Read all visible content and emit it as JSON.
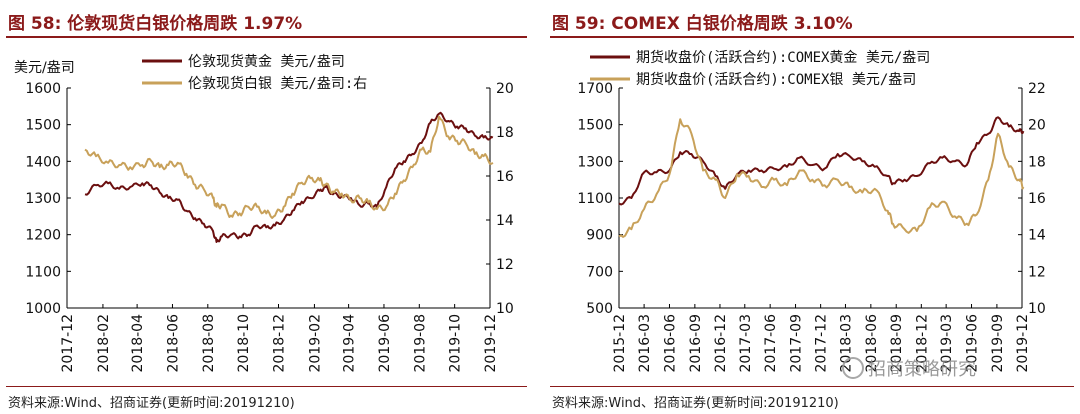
{
  "left": {
    "title": "图 58:  伦敦现货白银价格周跌 1.97%",
    "source": "资料来源:Wind、招商证券(更新时间:20191210)"
  },
  "right": {
    "title": "图 59:  COMEX 白银价格周跌 3.10%",
    "source": "资料来源:Wind、招商证券(更新时间:20191210)"
  },
  "watermark": "招商策略研究",
  "colors": {
    "accent": "#8b1a1a",
    "gold_series": "#6b0f0f",
    "silver_series": "#c8a15a"
  },
  "chart_data": [
    {
      "type": "line",
      "ylabel_left": "美元/盎司",
      "x_ticks": [
        "2017-12",
        "2018-02",
        "2018-04",
        "2018-06",
        "2018-08",
        "2018-10",
        "2018-12",
        "2019-02",
        "2019-04",
        "2019-06",
        "2019-08",
        "2019-10",
        "2019-12"
      ],
      "y_left": {
        "ticks": [
          1000,
          1100,
          1200,
          1300,
          1400,
          1500,
          1600
        ],
        "range": [
          1000,
          1600
        ]
      },
      "y_right": {
        "ticks": [
          10,
          12,
          14,
          16,
          18,
          20
        ],
        "range": [
          10,
          20
        ]
      },
      "series": [
        {
          "name": "伦敦现货黄金 美元/盎司",
          "axis": "left",
          "color": "#6b0f0f",
          "x": [
            "2018-01-01",
            "2018-01-20",
            "2018-02-10",
            "2018-03-01",
            "2018-03-20",
            "2018-04-10",
            "2018-04-25",
            "2018-05-10",
            "2018-05-25",
            "2018-06-10",
            "2018-06-25",
            "2018-07-10",
            "2018-07-25",
            "2018-08-10",
            "2018-08-16",
            "2018-08-25",
            "2018-09-10",
            "2018-09-25",
            "2018-10-10",
            "2018-10-25",
            "2018-11-10",
            "2018-11-25",
            "2018-12-10",
            "2018-12-25",
            "2019-01-10",
            "2019-01-25",
            "2019-02-10",
            "2019-02-20",
            "2019-03-05",
            "2019-03-20",
            "2019-04-05",
            "2019-04-20",
            "2019-05-05",
            "2019-05-20",
            "2019-06-05",
            "2019-06-20",
            "2019-07-05",
            "2019-07-20",
            "2019-08-05",
            "2019-08-20",
            "2019-09-04",
            "2019-09-20",
            "2019-10-05",
            "2019-10-20",
            "2019-11-05",
            "2019-11-20",
            "2019-12-06"
          ],
          "values": [
            1310,
            1335,
            1340,
            1325,
            1330,
            1340,
            1335,
            1315,
            1300,
            1295,
            1265,
            1245,
            1230,
            1210,
            1180,
            1195,
            1200,
            1195,
            1200,
            1225,
            1220,
            1225,
            1240,
            1265,
            1290,
            1300,
            1320,
            1330,
            1310,
            1305,
            1300,
            1280,
            1285,
            1275,
            1330,
            1380,
            1400,
            1420,
            1450,
            1505,
            1530,
            1510,
            1495,
            1490,
            1470,
            1465,
            1465
          ]
        },
        {
          "name": "伦敦现货白银 美元/盎司:右",
          "axis": "right",
          "color": "#c8a15a",
          "x": [
            "2018-01-01",
            "2018-01-20",
            "2018-02-10",
            "2018-03-01",
            "2018-03-20",
            "2018-04-10",
            "2018-04-25",
            "2018-05-10",
            "2018-05-25",
            "2018-06-10",
            "2018-06-25",
            "2018-07-10",
            "2018-07-25",
            "2018-08-10",
            "2018-08-16",
            "2018-08-25",
            "2018-09-10",
            "2018-09-25",
            "2018-10-10",
            "2018-10-25",
            "2018-11-10",
            "2018-11-25",
            "2018-12-10",
            "2018-12-25",
            "2019-01-10",
            "2019-01-25",
            "2019-02-10",
            "2019-02-20",
            "2019-03-05",
            "2019-03-20",
            "2019-04-05",
            "2019-04-20",
            "2019-05-05",
            "2019-05-20",
            "2019-06-05",
            "2019-06-20",
            "2019-07-05",
            "2019-07-20",
            "2019-08-05",
            "2019-08-20",
            "2019-09-04",
            "2019-09-20",
            "2019-10-05",
            "2019-10-20",
            "2019-11-05",
            "2019-11-20",
            "2019-12-06"
          ],
          "values": [
            17.2,
            16.9,
            16.6,
            16.5,
            16.4,
            16.5,
            16.7,
            16.4,
            16.5,
            16.6,
            16.1,
            15.6,
            15.4,
            15.0,
            14.6,
            14.7,
            14.2,
            14.3,
            14.6,
            14.6,
            14.3,
            14.2,
            14.6,
            15.2,
            15.7,
            15.9,
            15.8,
            15.6,
            15.3,
            15.2,
            14.9,
            15.0,
            14.8,
            14.5,
            14.6,
            15.2,
            15.8,
            16.4,
            17.2,
            17.1,
            18.7,
            17.8,
            17.6,
            17.5,
            17.0,
            16.9,
            16.6
          ]
        }
      ]
    },
    {
      "type": "line",
      "x_ticks": [
        "2015-12",
        "2016-03",
        "2016-06",
        "2016-09",
        "2016-12",
        "2017-03",
        "2017-06",
        "2017-09",
        "2017-12",
        "2018-03",
        "2018-06",
        "2018-09",
        "2018-12",
        "2019-03",
        "2019-06",
        "2019-09",
        "2019-12"
      ],
      "y_left": {
        "ticks": [
          500,
          700,
          900,
          1100,
          1300,
          1500,
          1700
        ],
        "range": [
          500,
          1700
        ]
      },
      "y_right": {
        "ticks": [
          10,
          12,
          14,
          16,
          18,
          20,
          22
        ],
        "range": [
          10,
          22
        ]
      },
      "series": [
        {
          "name": "期货收盘价(活跃合约):COMEX黄金 美元/盎司",
          "axis": "left",
          "color": "#6b0f0f",
          "x": [
            "2015-12-01",
            "2016-01-15",
            "2016-03-01",
            "2016-04-15",
            "2016-06-01",
            "2016-07-10",
            "2016-08-20",
            "2016-10-01",
            "2016-11-15",
            "2016-12-20",
            "2017-02-01",
            "2017-03-15",
            "2017-05-01",
            "2017-06-15",
            "2017-08-01",
            "2017-09-15",
            "2017-11-01",
            "2017-12-15",
            "2018-02-01",
            "2018-03-15",
            "2018-05-01",
            "2018-06-15",
            "2018-08-01",
            "2018-08-20",
            "2018-10-01",
            "2018-11-15",
            "2019-01-01",
            "2019-02-15",
            "2019-04-01",
            "2019-05-15",
            "2019-06-20",
            "2019-08-01",
            "2019-09-05",
            "2019-10-15",
            "2019-11-20",
            "2019-12-06"
          ],
          "values": [
            1070,
            1100,
            1240,
            1240,
            1250,
            1350,
            1340,
            1300,
            1220,
            1150,
            1230,
            1250,
            1250,
            1260,
            1270,
            1320,
            1280,
            1260,
            1340,
            1330,
            1300,
            1270,
            1220,
            1180,
            1200,
            1220,
            1290,
            1320,
            1300,
            1280,
            1400,
            1450,
            1540,
            1490,
            1465,
            1465
          ]
        },
        {
          "name": "期货收盘价(活跃合约):COMEX银 美元/盎司",
          "axis": "right",
          "color": "#c8a15a",
          "x": [
            "2015-12-01",
            "2016-01-15",
            "2016-03-01",
            "2016-04-15",
            "2016-06-01",
            "2016-07-10",
            "2016-08-20",
            "2016-10-01",
            "2016-11-15",
            "2016-12-20",
            "2017-02-01",
            "2017-03-15",
            "2017-05-01",
            "2017-06-15",
            "2017-08-01",
            "2017-09-15",
            "2017-11-01",
            "2017-12-15",
            "2018-02-01",
            "2018-03-15",
            "2018-05-01",
            "2018-06-15",
            "2018-08-01",
            "2018-08-20",
            "2018-10-01",
            "2018-11-15",
            "2019-01-01",
            "2019-02-15",
            "2019-04-01",
            "2019-05-15",
            "2019-06-20",
            "2019-08-01",
            "2019-09-05",
            "2019-10-15",
            "2019-11-20",
            "2019-12-06"
          ],
          "values": [
            13.9,
            14.3,
            15.4,
            16.2,
            17.3,
            20.3,
            19.5,
            17.5,
            17.0,
            16.0,
            17.3,
            17.2,
            16.6,
            17.0,
            16.7,
            17.5,
            17.0,
            16.7,
            17.0,
            16.6,
            16.3,
            16.5,
            15.3,
            14.6,
            14.3,
            14.2,
            15.5,
            15.8,
            15.0,
            14.6,
            15.1,
            17.0,
            19.5,
            17.7,
            17.0,
            16.6
          ]
        }
      ]
    }
  ]
}
